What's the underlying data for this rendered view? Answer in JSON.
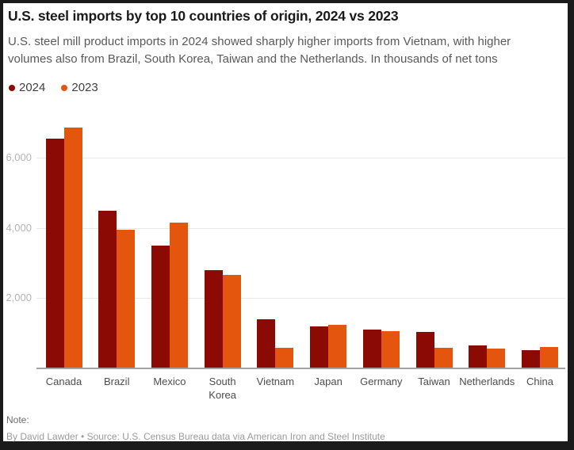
{
  "frame": {
    "background_color": "#1b1b1b",
    "panel_color": "#ffffff"
  },
  "header": {
    "title": "U.S. steel imports by top 10 countries of origin, 2024 vs 2023",
    "subtitle_line1": "U.S. steel mill product imports in 2024 showed sharply higher imports from Vietnam, with higher",
    "subtitle_line2": "volumes also from Brazil, South Korea, Taiwan and the Netherlands. In thousands of net tons"
  },
  "legend": {
    "items": [
      {
        "label": "2024",
        "color": "#8b0a03"
      },
      {
        "label": "2023",
        "color": "#e4560e"
      }
    ]
  },
  "chart_data": {
    "type": "bar",
    "title": "U.S. steel imports by top 10 countries of origin, 2024 vs 2023",
    "subtitle": "U.S. steel mill product imports in 2024 showed sharply higher imports from Vietnam, with higher volumes also from Brazil, South Korea, Taiwan and the Netherlands. In thousands of net tons",
    "units": "thousands of net tons",
    "categories": [
      "Canada",
      "Brazil",
      "Mexico",
      "South\nKorea",
      "Vietnam",
      "Japan",
      "Germany",
      "Taiwan",
      "Netherlands",
      "China"
    ],
    "series": [
      {
        "name": "2024",
        "color": "#8b0a03",
        "values": [
          6550,
          4480,
          3500,
          2790,
          1390,
          1190,
          1080,
          1030,
          630,
          500
        ]
      },
      {
        "name": "2023",
        "color": "#e4560e",
        "values": [
          6860,
          3940,
          4160,
          2650,
          570,
          1220,
          1040,
          570,
          540,
          600
        ]
      }
    ],
    "xlabel": "",
    "ylabel": "",
    "ylim": [
      0,
      7100
    ],
    "yticks": [
      2000,
      4000,
      6000
    ],
    "ytick_labels": [
      "2,000",
      "4,000",
      "6,000"
    ],
    "grid": true,
    "legend_position": "top-left",
    "gridline_color": "#e8e8e8",
    "baseline_color": "#a3a3a3"
  },
  "footer": {
    "note": "Note:",
    "byline": "By David Lawder • Source: U.S. Census Bureau data via American Iron and Steel Institute"
  }
}
